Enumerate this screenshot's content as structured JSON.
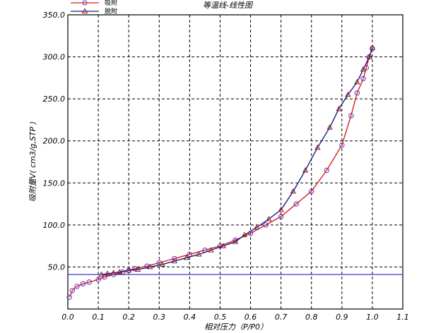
{
  "chart_data": {
    "type": "line",
    "title": "等温线-线性图",
    "xlabel": "相对压力（P/P0）",
    "ylabel": "吸附量V( cm3/g,STP )",
    "xlim": [
      0.0,
      1.1
    ],
    "ylim": [
      0,
      350
    ],
    "xticks": [
      "0.0",
      "0.1",
      "0.2",
      "0.3",
      "0.4",
      "0.5",
      "0.6",
      "0.7",
      "0.8",
      "0.9",
      "1.0",
      "1.1"
    ],
    "yticks": [
      "50.0",
      "100.0",
      "150.0",
      "200.0",
      "250.0",
      "300.0",
      "350.0"
    ],
    "grid": true,
    "legend_position": "top-left",
    "baseline": {
      "y": 41,
      "color": "#3a3ad6"
    },
    "series": [
      {
        "name": "吸附",
        "color": "#d62020",
        "marker": "circle",
        "marker_color": "#6a2fc0",
        "x": [
          0.005,
          0.015,
          0.03,
          0.05,
          0.07,
          0.1,
          0.12,
          0.15,
          0.18,
          0.2,
          0.22,
          0.26,
          0.3,
          0.35,
          0.4,
          0.45,
          0.5,
          0.55,
          0.6,
          0.65,
          0.7,
          0.75,
          0.8,
          0.85,
          0.9,
          0.93,
          0.95,
          0.97,
          0.98,
          0.99,
          1.0
        ],
        "y": [
          14,
          22,
          27,
          30,
          32,
          35,
          38,
          41,
          44,
          46,
          48,
          51,
          55,
          60,
          65,
          70,
          75,
          82,
          90,
          100,
          110,
          125,
          140,
          165,
          195,
          230,
          257,
          274,
          287,
          300,
          310
        ]
      },
      {
        "name": "脱附",
        "color": "#1c1c8a",
        "marker": "triangle",
        "marker_color": "#8a1c1c",
        "x": [
          1.0,
          0.99,
          0.97,
          0.95,
          0.92,
          0.89,
          0.86,
          0.82,
          0.78,
          0.74,
          0.7,
          0.66,
          0.62,
          0.58,
          0.55,
          0.51,
          0.47,
          0.43,
          0.39,
          0.35,
          0.31,
          0.27,
          0.23,
          0.2,
          0.17,
          0.15,
          0.13,
          0.11
        ],
        "y": [
          311,
          300,
          285,
          270,
          255,
          238,
          216,
          192,
          165,
          140,
          118,
          107,
          97,
          88,
          80,
          75,
          70,
          65,
          61,
          57,
          53,
          50,
          47,
          46,
          44,
          43,
          42,
          41
        ]
      }
    ]
  }
}
